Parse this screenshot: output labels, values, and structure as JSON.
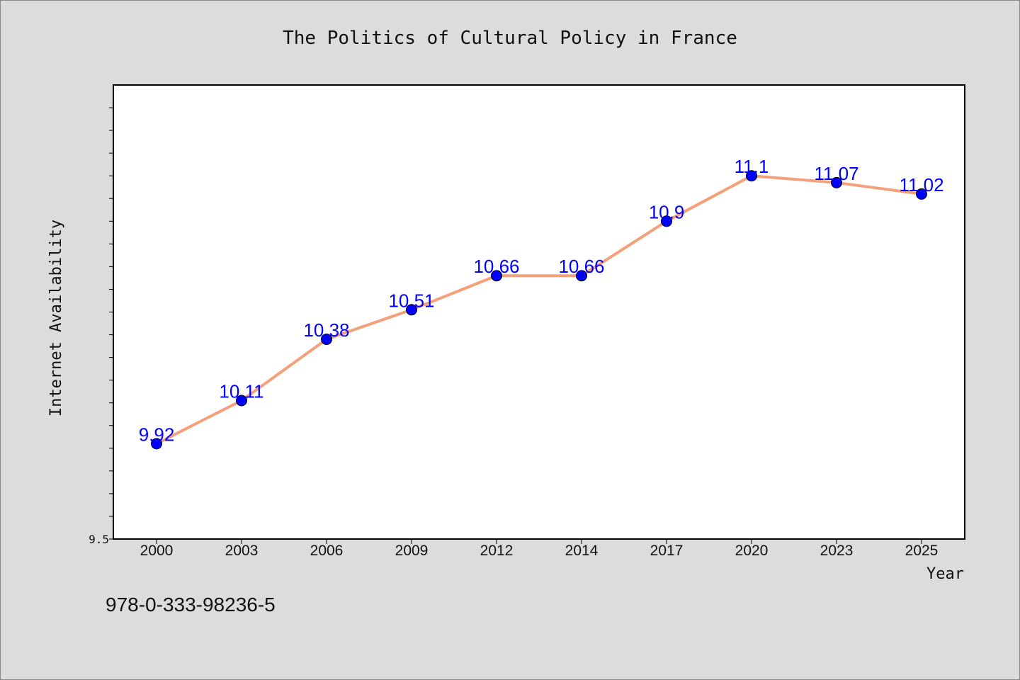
{
  "chart_data": {
    "type": "line",
    "title": "The Politics of Cultural Policy in France",
    "xlabel": "Year",
    "ylabel": "Internet Availability",
    "categories": [
      "2000",
      "2003",
      "2006",
      "2009",
      "2012",
      "2014",
      "2017",
      "2020",
      "2023",
      "2025"
    ],
    "series": [
      {
        "values": [
          9.92,
          10.11,
          10.38,
          10.51,
          10.66,
          10.66,
          10.9,
          11.1,
          11.07,
          11.02
        ],
        "line_color": "#f4a07a",
        "marker_color": "#0000ff"
      }
    ],
    "data_labels": [
      "9.92",
      "10.11",
      "10.38",
      "10.51",
      "10.66",
      "10.66",
      "10.9",
      "11.1",
      "11.07",
      "11.02"
    ],
    "y_tick_labels": [
      "9.5"
    ],
    "ylim": [
      9.5,
      11.5
    ],
    "grid": false,
    "legend": "none"
  },
  "footer": {
    "isbn": "978-0-333-98236-5"
  }
}
